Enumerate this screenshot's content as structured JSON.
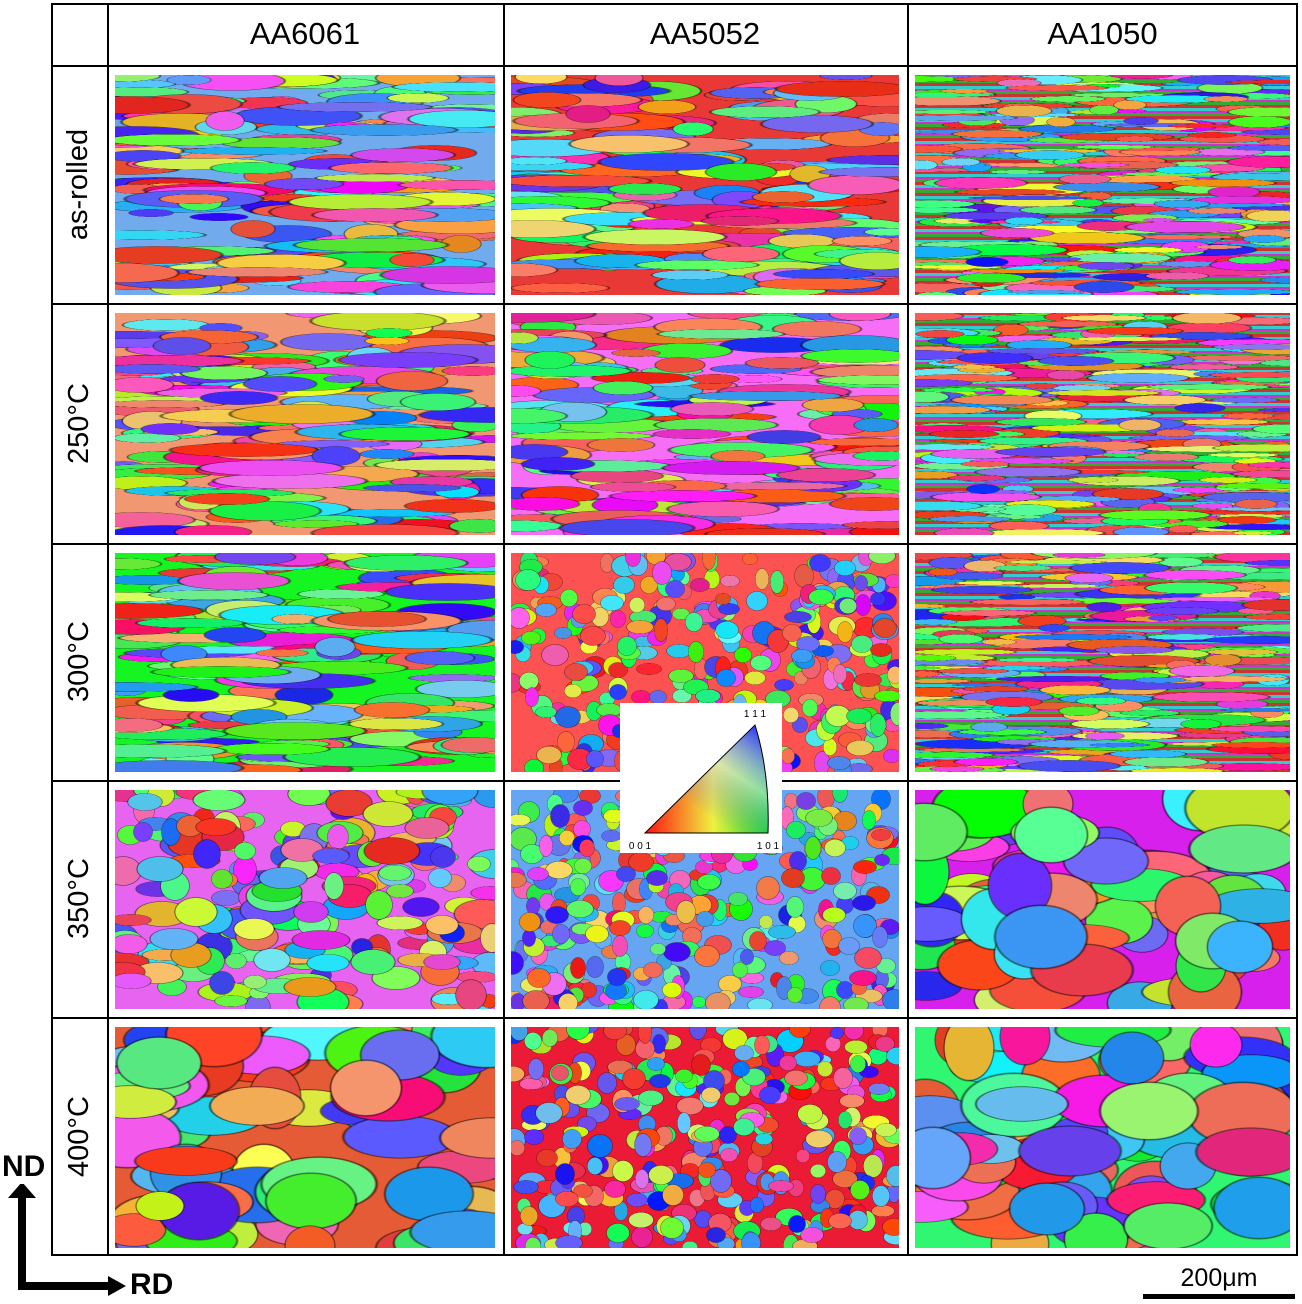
{
  "columns": [
    "AA6061",
    "AA5052",
    "AA1050"
  ],
  "rows": [
    "as-rolled",
    "250°C",
    "300°C",
    "350°C",
    "400°C"
  ],
  "legend": {
    "top": "1 1 1",
    "left": "0 0 1",
    "right": "1 0 1"
  },
  "axes": {
    "vertical": "ND",
    "horizontal": "RD"
  },
  "scale_bar": "200μm"
}
